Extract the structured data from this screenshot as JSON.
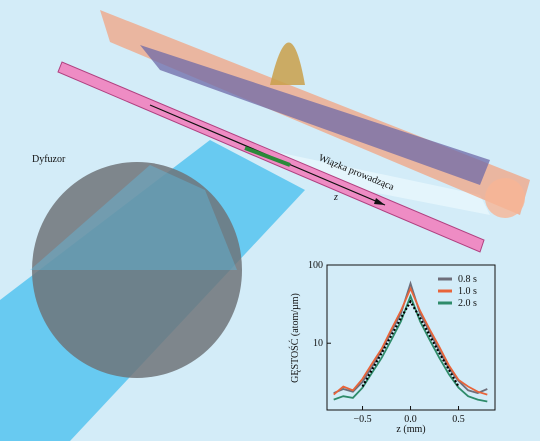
{
  "chart_data": {
    "type": "line",
    "xlabel": "z (mm)",
    "ylabel": "GĘSTOŚĆ (atom/µm)",
    "annotations": [
      "Dyfuzor",
      "Wiązka prowadząca",
      "z"
    ],
    "x": [
      -0.8,
      -0.7,
      -0.6,
      -0.5,
      -0.4,
      -0.3,
      -0.2,
      -0.1,
      0.0,
      0.1,
      0.2,
      0.3,
      0.4,
      0.5,
      0.6,
      0.7,
      0.8
    ],
    "series": [
      {
        "name": "0.8 s",
        "color": "#6e6e7a",
        "values": [
          2.3,
          2.6,
          2.4,
          3.2,
          5,
          8,
          14,
          24,
          58,
          24,
          14,
          8,
          4.8,
          3.3,
          2.5,
          2.3,
          2.6
        ]
      },
      {
        "name": "1.0 s",
        "color": "#e8643a",
        "values": [
          2.2,
          2.8,
          2.5,
          3.5,
          5.5,
          8.5,
          15,
          26,
          50,
          26,
          15,
          9,
          5.2,
          3.4,
          2.8,
          2.4,
          2.2
        ]
      },
      {
        "name": "2.0 s",
        "color": "#2e8b6a",
        "values": [
          1.9,
          2.1,
          2.0,
          2.7,
          4.2,
          6.5,
          11,
          19,
          40,
          19,
          11,
          6.5,
          4,
          2.7,
          2.1,
          1.9,
          1.8
        ]
      },
      {
        "color": "#000000",
        "style": "dotted",
        "values": [
          null,
          null,
          null,
          2.8,
          4.6,
          7.5,
          12.5,
          21,
          34,
          21,
          12.5,
          7.5,
          4.6,
          2.8,
          null,
          null,
          null
        ]
      }
    ],
    "xlim": [
      -0.87,
      0.88
    ],
    "xticks": [
      {
        "value": -0.5,
        "label": "−0.5"
      },
      {
        "value": 0,
        "label": "0.0"
      },
      {
        "value": 0.5,
        "label": "0.5"
      }
    ],
    "ylim": [
      1.4,
      100
    ],
    "yticks": [
      10,
      100
    ],
    "log_y": true,
    "legend": "upper-right"
  }
}
